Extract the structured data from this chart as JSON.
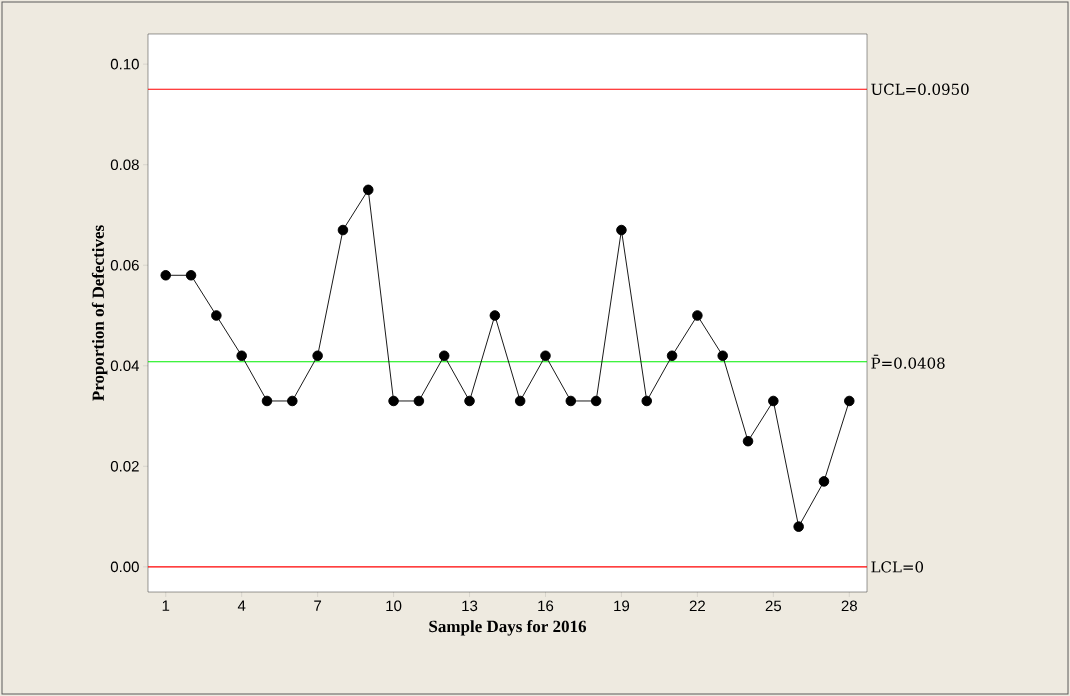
{
  "chart_data": {
    "type": "line",
    "xlabel": "Sample Days for 2016",
    "ylabel": "Proportion of Defectives",
    "x": [
      1,
      2,
      3,
      4,
      5,
      6,
      7,
      8,
      9,
      10,
      11,
      12,
      13,
      14,
      15,
      16,
      17,
      18,
      19,
      20,
      21,
      22,
      23,
      24,
      25,
      26,
      27,
      28
    ],
    "series": [
      {
        "color": "#000000",
        "values": [
          0.058,
          0.058,
          0.05,
          0.042,
          0.033,
          0.033,
          0.042,
          0.067,
          0.075,
          0.033,
          0.033,
          0.042,
          0.033,
          0.05,
          0.033,
          0.042,
          0.033,
          0.033,
          0.067,
          0.033,
          0.042,
          0.05,
          0.042,
          0.025,
          0.033,
          0.008,
          0.017,
          0.033
        ]
      }
    ],
    "xlim": [
      0.3,
      28.7
    ],
    "ylim": [
      -0.005,
      0.106
    ],
    "xticks": [
      1,
      4,
      7,
      10,
      13,
      16,
      19,
      22,
      25,
      28
    ],
    "yticks": [
      {
        "value": 0,
        "label": "0.00"
      },
      {
        "value": 0.02,
        "label": "0.02"
      },
      {
        "value": 0.04,
        "label": "0.04"
      },
      {
        "value": 0.06,
        "label": "0.06"
      },
      {
        "value": 0.08,
        "label": "0.08"
      },
      {
        "value": 0.1,
        "label": "0.10"
      }
    ],
    "ref_lines": [
      {
        "axis": "y",
        "value": 0.095,
        "label": "UCL=0.0950",
        "color": "#ff0000"
      },
      {
        "axis": "y",
        "value": 0.0408,
        "label": "P̄=0.0408",
        "color": "#00ee00"
      },
      {
        "axis": "y",
        "value": 0,
        "label": "LCL=0",
        "color": "#ff0000"
      }
    ],
    "marker": "circle",
    "line_style": "solid"
  }
}
